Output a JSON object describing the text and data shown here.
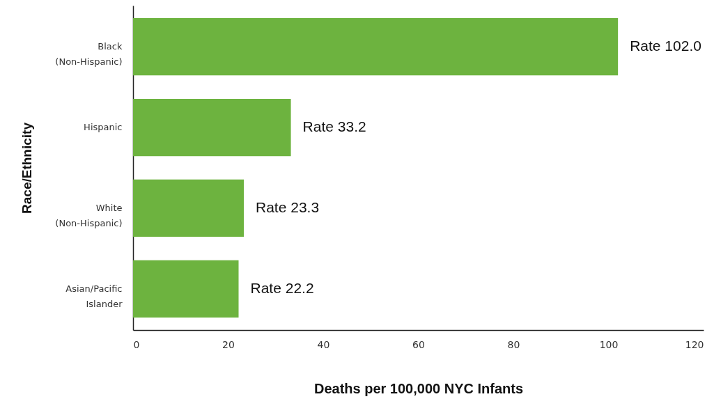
{
  "chart_data": {
    "type": "bar",
    "orientation": "horizontal",
    "xlabel": "Deaths per 100,000 NYC Infants",
    "ylabel": "Race/Ethnicity",
    "categories": [
      "Black\n(Non-Hispanic)",
      "Hispanic",
      "White\n(Non-Hispanic)",
      "Asian/Pacific\nIslander"
    ],
    "values": [
      102.0,
      33.2,
      23.3,
      22.2
    ],
    "color": "#6db33f",
    "value_labels": [
      "Rate 102.0",
      "Rate 33.2",
      "Rate 23.3",
      "Rate 22.2"
    ],
    "xlim": [
      0,
      120
    ],
    "xticks": [
      0,
      20,
      40,
      60,
      80,
      100,
      120
    ],
    "grid": false
  }
}
